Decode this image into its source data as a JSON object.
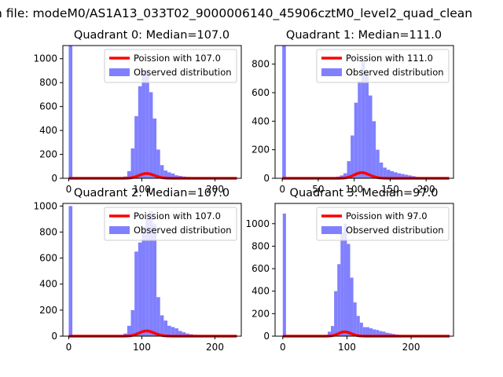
{
  "figure": {
    "suptitle": "n file: modeM0/AS1A13_033T02_9000006140_45906cztM0_level2_quad_clean"
  },
  "chart_data": [
    {
      "type": "bar",
      "title": "Quadrant 0: Median=107.0",
      "xlim": [
        -8,
        236
      ],
      "ylim": [
        0,
        1110
      ],
      "xticks": [
        0,
        100,
        200
      ],
      "yticks": [
        0,
        200,
        400,
        600,
        800,
        1000
      ],
      "legend_position": "top-right",
      "bin_width": 5,
      "bars": [
        [
          0,
          1110
        ],
        [
          70,
          5
        ],
        [
          75,
          15
        ],
        [
          80,
          60
        ],
        [
          85,
          250
        ],
        [
          90,
          520
        ],
        [
          95,
          770
        ],
        [
          100,
          900
        ],
        [
          105,
          910
        ],
        [
          110,
          720
        ],
        [
          115,
          500
        ],
        [
          120,
          240
        ],
        [
          125,
          110
        ],
        [
          130,
          65
        ],
        [
          135,
          50
        ],
        [
          140,
          40
        ],
        [
          145,
          25
        ],
        [
          150,
          20
        ],
        [
          155,
          15
        ],
        [
          160,
          12
        ],
        [
          165,
          10
        ],
        [
          170,
          8
        ],
        [
          175,
          6
        ],
        [
          180,
          5
        ],
        [
          185,
          4
        ],
        [
          190,
          3
        ],
        [
          195,
          3
        ]
      ],
      "poisson_mu": 107.0,
      "poisson_scale": 97,
      "series": [
        {
          "name": "Poission with 107.0",
          "type": "line",
          "color": "#ff0000"
        },
        {
          "name": "Observed distribution",
          "type": "bar",
          "color": "#8080ff"
        }
      ]
    },
    {
      "type": "bar",
      "title": "Quadrant 1: Median=111.0",
      "xlim": [
        -10,
        238
      ],
      "ylim": [
        0,
        930
      ],
      "xticks": [
        0,
        50,
        100,
        150,
        200
      ],
      "yticks": [
        0,
        200,
        400,
        600,
        800
      ],
      "legend_position": "top-right",
      "bin_width": 5,
      "bars": [
        [
          0,
          930
        ],
        [
          65,
          5
        ],
        [
          70,
          8
        ],
        [
          75,
          12
        ],
        [
          80,
          20
        ],
        [
          85,
          35
        ],
        [
          90,
          120
        ],
        [
          95,
          300
        ],
        [
          100,
          530
        ],
        [
          105,
          680
        ],
        [
          110,
          830
        ],
        [
          115,
          740
        ],
        [
          120,
          580
        ],
        [
          125,
          400
        ],
        [
          130,
          200
        ],
        [
          135,
          110
        ],
        [
          140,
          75
        ],
        [
          145,
          60
        ],
        [
          150,
          50
        ],
        [
          155,
          42
        ],
        [
          160,
          35
        ],
        [
          165,
          30
        ],
        [
          170,
          25
        ],
        [
          175,
          20
        ],
        [
          180,
          15
        ],
        [
          185,
          10
        ],
        [
          190,
          8
        ],
        [
          195,
          6
        ],
        [
          200,
          4
        ]
      ],
      "poisson_mu": 111.0,
      "poisson_scale": 94,
      "series": [
        {
          "name": "Poission with 111.0",
          "type": "line",
          "color": "#ff0000"
        },
        {
          "name": "Observed distribution",
          "type": "bar",
          "color": "#8080ff"
        }
      ]
    },
    {
      "type": "bar",
      "title": "Quadrant 2: Median=107.0",
      "xlim": [
        -8,
        236
      ],
      "ylim": [
        0,
        1020
      ],
      "xticks": [
        0,
        100,
        200
      ],
      "yticks": [
        0,
        200,
        400,
        600,
        800,
        1000
      ],
      "legend_position": "top-right",
      "bin_width": 5,
      "bars": [
        [
          0,
          1000
        ],
        [
          70,
          5
        ],
        [
          75,
          20
        ],
        [
          80,
          80
        ],
        [
          85,
          200
        ],
        [
          90,
          650
        ],
        [
          95,
          720
        ],
        [
          100,
          840
        ],
        [
          105,
          900
        ],
        [
          110,
          960
        ],
        [
          115,
          860
        ],
        [
          120,
          300
        ],
        [
          125,
          160
        ],
        [
          130,
          120
        ],
        [
          135,
          80
        ],
        [
          140,
          70
        ],
        [
          145,
          60
        ],
        [
          150,
          40
        ],
        [
          155,
          30
        ],
        [
          160,
          20
        ],
        [
          165,
          15
        ],
        [
          170,
          10
        ],
        [
          175,
          8
        ],
        [
          180,
          5
        ],
        [
          185,
          4
        ],
        [
          190,
          3
        ]
      ],
      "poisson_mu": 107.0,
      "poisson_scale": 97,
      "series": [
        {
          "name": "Poission with 107.0",
          "type": "line",
          "color": "#ff0000"
        },
        {
          "name": "Observed distribution",
          "type": "bar",
          "color": "#8080ff"
        }
      ]
    },
    {
      "type": "bar",
      "title": "Quadrant 3: Median=97.0",
      "xlim": [
        -12,
        266
      ],
      "ylim": [
        0,
        1180
      ],
      "xticks": [
        0,
        100,
        200
      ],
      "yticks": [
        0,
        200,
        400,
        600,
        800,
        1000
      ],
      "legend_position": "top-right",
      "bin_width": 5,
      "bars": [
        [
          0,
          1090
        ],
        [
          60,
          5
        ],
        [
          65,
          10
        ],
        [
          70,
          40
        ],
        [
          75,
          90
        ],
        [
          80,
          400
        ],
        [
          85,
          640
        ],
        [
          90,
          920
        ],
        [
          95,
          1000
        ],
        [
          100,
          820
        ],
        [
          105,
          520
        ],
        [
          110,
          300
        ],
        [
          115,
          180
        ],
        [
          120,
          120
        ],
        [
          125,
          80
        ],
        [
          130,
          80
        ],
        [
          135,
          70
        ],
        [
          140,
          60
        ],
        [
          145,
          55
        ],
        [
          150,
          45
        ],
        [
          155,
          40
        ],
        [
          160,
          30
        ],
        [
          165,
          25
        ],
        [
          170,
          20
        ],
        [
          175,
          15
        ],
        [
          180,
          12
        ],
        [
          185,
          10
        ],
        [
          190,
          8
        ],
        [
          195,
          6
        ],
        [
          200,
          5
        ],
        [
          205,
          4
        ],
        [
          210,
          3
        ]
      ],
      "poisson_mu": 97.0,
      "poisson_scale": 97,
      "series": [
        {
          "name": "Poission with 97.0",
          "type": "line",
          "color": "#ff0000"
        },
        {
          "name": "Observed distribution",
          "type": "bar",
          "color": "#8080ff"
        }
      ]
    }
  ]
}
